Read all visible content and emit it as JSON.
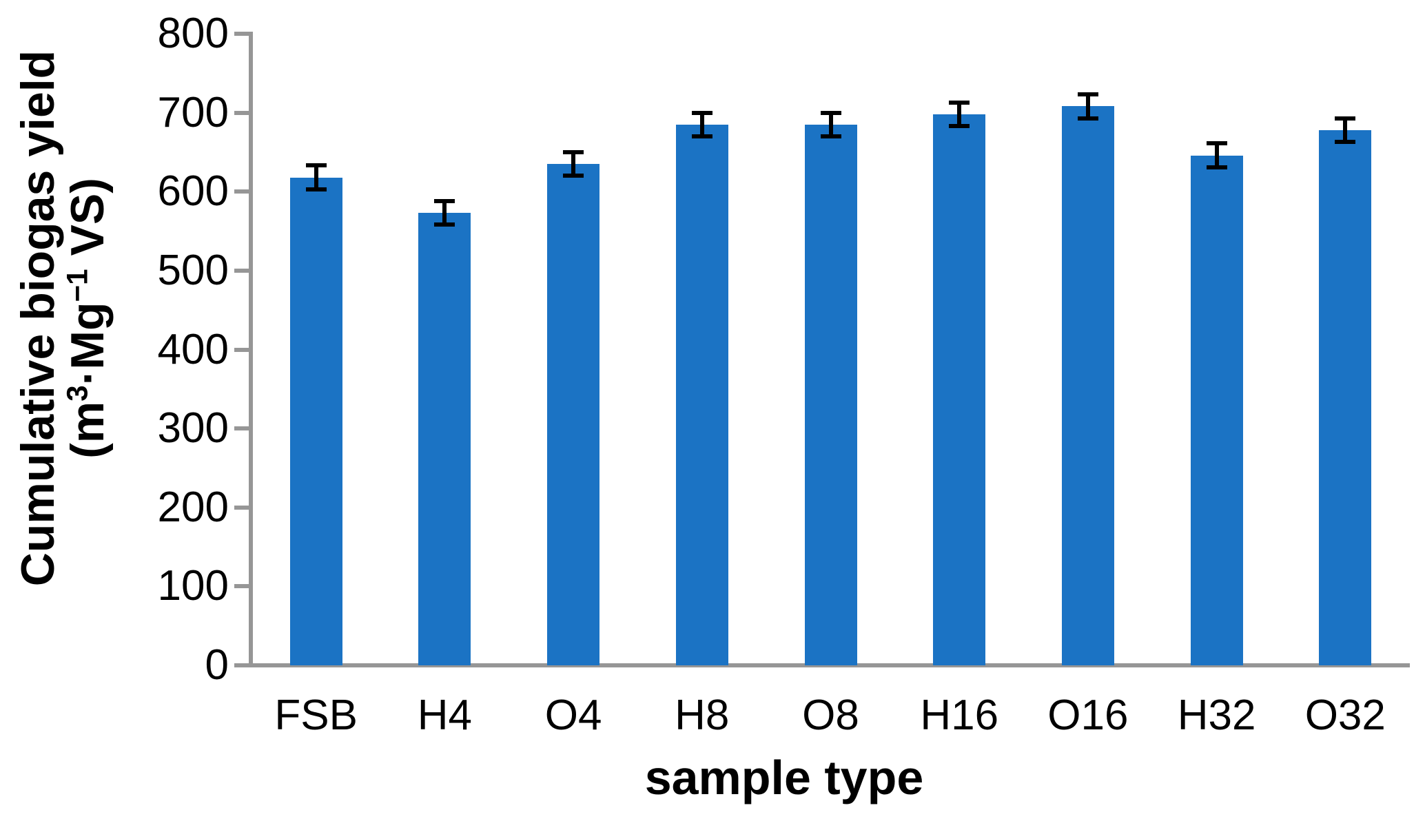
{
  "chart_data": {
    "type": "bar",
    "title": "",
    "categories": [
      "FSB",
      "H4",
      "O4",
      "H8",
      "O8",
      "H16",
      "O16",
      "H32",
      "O32"
    ],
    "values": [
      618,
      573,
      635,
      685,
      685,
      698,
      708,
      646,
      678
    ],
    "errors": [
      15,
      15,
      15,
      15,
      15,
      15,
      15,
      15,
      15
    ],
    "xlabel": "sample type",
    "ylabel_line1": "Cumulative biogas yield",
    "ylabel_line2_parts": [
      {
        "t": "(m"
      },
      {
        "t": "3",
        "sup": true
      },
      {
        "t": "·Mg"
      },
      {
        "t": "−1",
        "sup": true
      },
      {
        "t": " VS)"
      }
    ],
    "ylim": [
      0,
      800
    ],
    "yticks": [
      0,
      100,
      200,
      300,
      400,
      500,
      600,
      700,
      800
    ],
    "grid": false,
    "legend": "none",
    "bar_color": "#1b73c4",
    "axis_color": "#969696",
    "error_bar_color": "#000000",
    "text_color": "#000000"
  }
}
